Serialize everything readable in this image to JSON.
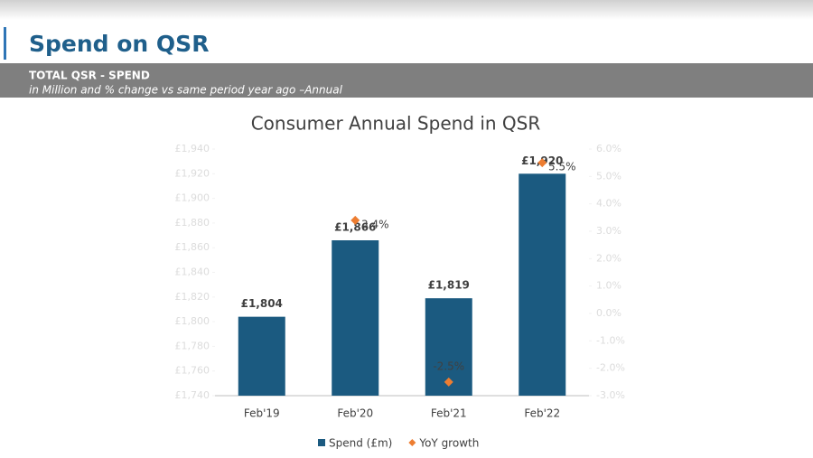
{
  "slide": {
    "title": "Spend on QSR",
    "band_title": "TOTAL QSR - SPEND",
    "band_subtitle": "in Million and % change vs same period year ago –Annual"
  },
  "chart_data": {
    "type": "bar",
    "title": "Consumer Annual Spend in QSR",
    "categories": [
      "Feb'19",
      "Feb'20",
      "Feb'21",
      "Feb'22"
    ],
    "series": [
      {
        "name": "Spend (£m)",
        "type": "bar",
        "color": "#1b5a80",
        "values": [
          1804,
          1866,
          1819,
          1920
        ],
        "value_labels": [
          "£1,804",
          "£1,866",
          "£1,819",
          "£1,920"
        ]
      },
      {
        "name": "YoY growth",
        "type": "scatter",
        "axis": "y2",
        "color": "#ed7d31",
        "values": [
          null,
          3.4,
          -2.5,
          5.5
        ],
        "value_labels": [
          null,
          "3.4%",
          "-2.5%",
          "5.5%"
        ]
      }
    ],
    "ylim": [
      1740,
      1940
    ],
    "yticks": [
      {
        "value": 1740,
        "label": "£1,740"
      },
      {
        "value": 1760,
        "label": "£1,760"
      },
      {
        "value": 1780,
        "label": "£1,780"
      },
      {
        "value": 1800,
        "label": "£1,800"
      },
      {
        "value": 1820,
        "label": "£1,820"
      },
      {
        "value": 1840,
        "label": "£1,840"
      },
      {
        "value": 1860,
        "label": "£1,860"
      },
      {
        "value": 1880,
        "label": "£1,880"
      },
      {
        "value": 1900,
        "label": "£1,900"
      },
      {
        "value": 1920,
        "label": "£1,920"
      },
      {
        "value": 1940,
        "label": "£1,940"
      }
    ],
    "y2lim": [
      -3,
      6
    ],
    "y2ticks": [
      {
        "value": -3,
        "label": "-3.0%"
      },
      {
        "value": -2,
        "label": "-2.0%"
      },
      {
        "value": -1,
        "label": "-1.0%"
      },
      {
        "value": 0,
        "label": "0.0%"
      },
      {
        "value": 1,
        "label": "1.0%"
      },
      {
        "value": 2,
        "label": "2.0%"
      },
      {
        "value": 3,
        "label": "3.0%"
      },
      {
        "value": 4,
        "label": "4.0%"
      },
      {
        "value": 5,
        "label": "5.0%"
      },
      {
        "value": 6,
        "label": "6.0%"
      }
    ],
    "grid": false,
    "legend": "bottom"
  }
}
